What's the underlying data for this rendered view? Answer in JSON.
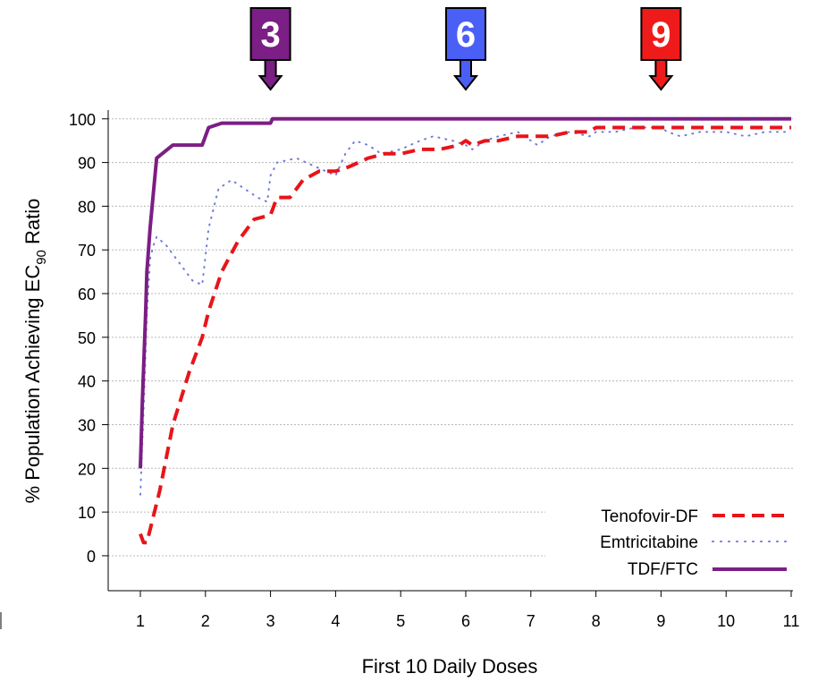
{
  "chart_data": {
    "type": "line",
    "title": "",
    "xlabel": "First 10 Daily Doses",
    "ylabel_prefix": "% Population Achieving EC",
    "ylabel_sub": "90",
    "ylabel_suffix": " Ratio",
    "xlim": [
      1,
      11
    ],
    "ylim": [
      -8,
      102
    ],
    "x_ticks": [
      1,
      2,
      3,
      4,
      5,
      6,
      7,
      8,
      9,
      10,
      11
    ],
    "y_ticks": [
      0,
      10,
      20,
      30,
      40,
      50,
      60,
      70,
      80,
      90,
      100
    ],
    "grid": "horizontal-dotted",
    "legend_position": "bottom-right",
    "series": [
      {
        "name": "Tenofovir-DF",
        "color": "#e8141a",
        "style": "dashed",
        "points": [
          [
            1.0,
            5
          ],
          [
            1.05,
            3
          ],
          [
            1.1,
            3
          ],
          [
            1.3,
            15
          ],
          [
            1.5,
            30
          ],
          [
            1.75,
            42
          ],
          [
            1.95,
            50
          ],
          [
            2.05,
            56
          ],
          [
            2.25,
            65
          ],
          [
            2.5,
            72
          ],
          [
            2.75,
            77
          ],
          [
            3.0,
            78
          ],
          [
            3.1,
            82
          ],
          [
            3.3,
            82
          ],
          [
            3.5,
            86
          ],
          [
            3.75,
            88
          ],
          [
            4.0,
            88
          ],
          [
            4.2,
            89
          ],
          [
            4.5,
            91
          ],
          [
            4.75,
            92
          ],
          [
            5.0,
            92
          ],
          [
            5.3,
            93
          ],
          [
            5.6,
            93
          ],
          [
            5.9,
            94
          ],
          [
            6.0,
            95
          ],
          [
            6.1,
            94
          ],
          [
            6.3,
            95
          ],
          [
            6.5,
            95
          ],
          [
            6.8,
            96
          ],
          [
            7.0,
            96
          ],
          [
            7.3,
            96
          ],
          [
            7.6,
            97
          ],
          [
            7.9,
            97
          ],
          [
            8.0,
            98
          ],
          [
            8.3,
            98
          ],
          [
            8.6,
            98
          ],
          [
            8.9,
            98
          ],
          [
            9.0,
            98
          ],
          [
            9.5,
            98
          ],
          [
            10.0,
            98
          ],
          [
            10.5,
            98
          ],
          [
            11.0,
            98
          ]
        ]
      },
      {
        "name": "Emtricitabine",
        "color": "#6f7bd9",
        "style": "dotted",
        "points": [
          [
            1.0,
            14
          ],
          [
            1.05,
            33
          ],
          [
            1.1,
            55
          ],
          [
            1.15,
            68
          ],
          [
            1.2,
            71
          ],
          [
            1.25,
            73
          ],
          [
            1.4,
            71
          ],
          [
            1.6,
            67
          ],
          [
            1.8,
            63
          ],
          [
            1.95,
            62
          ],
          [
            2.05,
            75
          ],
          [
            2.2,
            84
          ],
          [
            2.4,
            86
          ],
          [
            2.6,
            84
          ],
          [
            2.8,
            82
          ],
          [
            2.95,
            81
          ],
          [
            3.0,
            87
          ],
          [
            3.1,
            90
          ],
          [
            3.4,
            91
          ],
          [
            3.7,
            89
          ],
          [
            4.0,
            87
          ],
          [
            4.15,
            92
          ],
          [
            4.3,
            95
          ],
          [
            4.5,
            94
          ],
          [
            4.7,
            92
          ],
          [
            5.0,
            93
          ],
          [
            5.3,
            95
          ],
          [
            5.5,
            96
          ],
          [
            5.8,
            95
          ],
          [
            6.0,
            94
          ],
          [
            6.1,
            93
          ],
          [
            6.3,
            95
          ],
          [
            6.5,
            96
          ],
          [
            6.8,
            97
          ],
          [
            7.0,
            95
          ],
          [
            7.1,
            94
          ],
          [
            7.3,
            96
          ],
          [
            7.6,
            97
          ],
          [
            7.9,
            96
          ],
          [
            8.0,
            97
          ],
          [
            8.3,
            97
          ],
          [
            8.6,
            98
          ],
          [
            8.9,
            98
          ],
          [
            9.0,
            98
          ],
          [
            9.1,
            97
          ],
          [
            9.3,
            96
          ],
          [
            9.6,
            97
          ],
          [
            9.9,
            97
          ],
          [
            10.0,
            97
          ],
          [
            10.3,
            96
          ],
          [
            10.6,
            97
          ],
          [
            11.0,
            97
          ]
        ]
      },
      {
        "name": "TDF/FTC",
        "color": "#7b1e85",
        "style": "solid",
        "points": [
          [
            1.0,
            20
          ],
          [
            1.03,
            35
          ],
          [
            1.08,
            55
          ],
          [
            1.1,
            65
          ],
          [
            1.15,
            75
          ],
          [
            1.25,
            91
          ],
          [
            1.5,
            94
          ],
          [
            1.75,
            94
          ],
          [
            1.95,
            94
          ],
          [
            2.05,
            98
          ],
          [
            2.25,
            99
          ],
          [
            2.5,
            99
          ],
          [
            2.75,
            99
          ],
          [
            3.0,
            99
          ],
          [
            3.03,
            100
          ],
          [
            4.0,
            100
          ],
          [
            5.0,
            100
          ],
          [
            6.0,
            100
          ],
          [
            7.0,
            100
          ],
          [
            8.0,
            100
          ],
          [
            9.0,
            100
          ],
          [
            10.0,
            100
          ],
          [
            11.0,
            100
          ]
        ]
      }
    ],
    "markers": [
      {
        "label": "3",
        "x": 3,
        "color": "#7b1e85"
      },
      {
        "label": "6",
        "x": 6,
        "color": "#4a5ff5"
      },
      {
        "label": "9",
        "x": 9,
        "color": "#ef1b1b"
      }
    ]
  }
}
